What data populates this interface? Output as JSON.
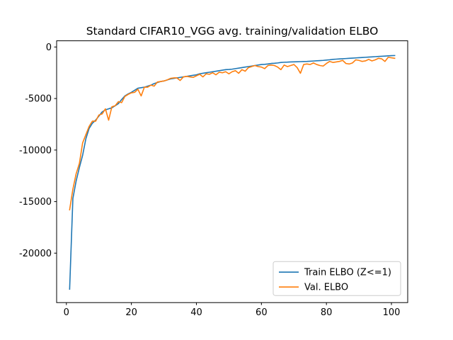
{
  "chart_data": {
    "type": "line",
    "title": "Standard CIFAR10_VGG avg. training/validation ELBO",
    "xlabel": "",
    "ylabel": "",
    "xlim": [
      -3,
      105
    ],
    "ylim": [
      -24800,
      600
    ],
    "xticks": [
      0,
      20,
      40,
      60,
      80,
      100
    ],
    "yticks": [
      0,
      -5000,
      -10000,
      -15000,
      -20000
    ],
    "grid": false,
    "legend_position": "lower-right",
    "series": [
      {
        "name": "Train ELBO (Z<=1)",
        "color": "#1f77b4",
        "x": [
          1,
          2,
          3,
          4,
          5,
          6,
          7,
          8,
          9,
          10,
          11,
          12,
          13,
          14,
          15,
          16,
          17,
          18,
          19,
          20,
          21,
          22,
          23,
          24,
          25,
          26,
          27,
          28,
          29,
          30,
          31,
          32,
          33,
          34,
          35,
          36,
          37,
          38,
          39,
          40,
          41,
          42,
          43,
          44,
          45,
          46,
          47,
          48,
          49,
          50,
          51,
          52,
          53,
          54,
          55,
          56,
          57,
          58,
          59,
          60,
          61,
          62,
          63,
          64,
          65,
          66,
          67,
          68,
          69,
          70,
          71,
          72,
          73,
          74,
          75,
          76,
          77,
          78,
          79,
          80,
          81,
          82,
          83,
          84,
          85,
          86,
          87,
          88,
          89,
          90,
          91,
          92,
          93,
          94,
          95,
          96,
          97,
          98,
          99,
          100,
          101
        ],
        "values": [
          -23500,
          -14700,
          -13000,
          -11700,
          -10500,
          -8900,
          -7900,
          -7400,
          -7100,
          -6700,
          -6300,
          -6100,
          -6000,
          -5900,
          -5700,
          -5500,
          -5100,
          -4750,
          -4550,
          -4400,
          -4200,
          -4000,
          -3950,
          -3900,
          -3800,
          -3700,
          -3550,
          -3450,
          -3350,
          -3300,
          -3200,
          -3100,
          -3050,
          -3000,
          -2950,
          -2900,
          -2850,
          -2800,
          -2750,
          -2700,
          -2600,
          -2550,
          -2500,
          -2450,
          -2400,
          -2350,
          -2300,
          -2250,
          -2200,
          -2180,
          -2150,
          -2100,
          -2050,
          -2000,
          -1950,
          -1900,
          -1850,
          -1800,
          -1750,
          -1700,
          -1680,
          -1650,
          -1600,
          -1580,
          -1550,
          -1500,
          -1480,
          -1470,
          -1450,
          -1440,
          -1430,
          -1420,
          -1410,
          -1400,
          -1380,
          -1360,
          -1340,
          -1320,
          -1300,
          -1270,
          -1240,
          -1200,
          -1180,
          -1160,
          -1140,
          -1120,
          -1100,
          -1080,
          -1060,
          -1040,
          -1020,
          -1000,
          -980,
          -960,
          -940,
          -920,
          -900,
          -880,
          -860,
          -840,
          -830
        ]
      },
      {
        "name": "Val. ELBO",
        "color": "#ff7f0e",
        "x": [
          1,
          2,
          3,
          4,
          5,
          6,
          7,
          8,
          9,
          10,
          11,
          12,
          13,
          14,
          15,
          16,
          17,
          18,
          19,
          20,
          21,
          22,
          23,
          24,
          25,
          26,
          27,
          28,
          29,
          30,
          31,
          32,
          33,
          34,
          35,
          36,
          37,
          38,
          39,
          40,
          41,
          42,
          43,
          44,
          45,
          46,
          47,
          48,
          49,
          50,
          51,
          52,
          53,
          54,
          55,
          56,
          57,
          58,
          59,
          60,
          61,
          62,
          63,
          64,
          65,
          66,
          67,
          68,
          69,
          70,
          71,
          72,
          73,
          74,
          75,
          76,
          77,
          78,
          79,
          80,
          81,
          82,
          83,
          84,
          85,
          86,
          87,
          88,
          89,
          90,
          91,
          92,
          93,
          94,
          95,
          96,
          97,
          98,
          99,
          100,
          101
        ],
        "values": [
          -15800,
          -13800,
          -12300,
          -11300,
          -9300,
          -8500,
          -7700,
          -7200,
          -7200,
          -6600,
          -6500,
          -6000,
          -7100,
          -5800,
          -5700,
          -5300,
          -5400,
          -4800,
          -4600,
          -4450,
          -4400,
          -4100,
          -4750,
          -3900,
          -3900,
          -3700,
          -3800,
          -3400,
          -3350,
          -3300,
          -3200,
          -3050,
          -3000,
          -3000,
          -3250,
          -2900,
          -2850,
          -2900,
          -2950,
          -2800,
          -2650,
          -2900,
          -2600,
          -2650,
          -2500,
          -2700,
          -2450,
          -2500,
          -2400,
          -2600,
          -2400,
          -2300,
          -2550,
          -2200,
          -2350,
          -2000,
          -1900,
          -1800,
          -1900,
          -1950,
          -2100,
          -1800,
          -1750,
          -1800,
          -1950,
          -2200,
          -1750,
          -1900,
          -1800,
          -1700,
          -2000,
          -2550,
          -1700,
          -1650,
          -1700,
          -1550,
          -1700,
          -1800,
          -1850,
          -1600,
          -1400,
          -1500,
          -1450,
          -1400,
          -1300,
          -1600,
          -1650,
          -1550,
          -1250,
          -1300,
          -1400,
          -1350,
          -1200,
          -1350,
          -1250,
          -1100,
          -1150,
          -1400,
          -1000,
          -1050,
          -1100
        ]
      }
    ]
  }
}
